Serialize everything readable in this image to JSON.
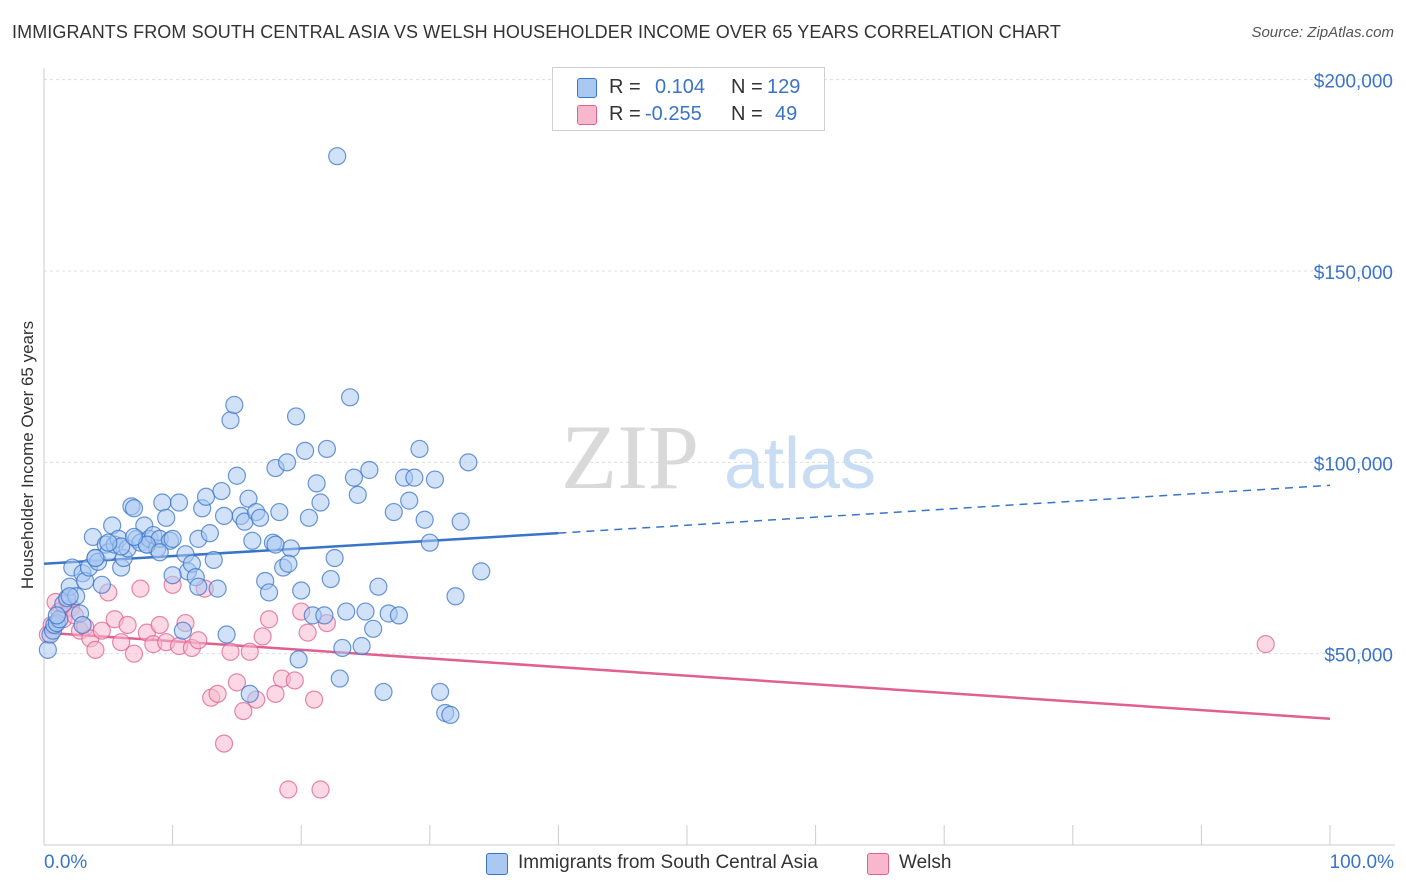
{
  "header": {
    "title": "IMMIGRANTS FROM SOUTH CENTRAL ASIA VS WELSH HOUSEHOLDER INCOME OVER 65 YEARS CORRELATION CHART",
    "source": "Source: ZipAtlas.com"
  },
  "legend": {
    "rows": [
      {
        "r_label": "R =",
        "r_value": "0.104",
        "n_label": "N =",
        "n_value": "129",
        "color": "#a9c9f2"
      },
      {
        "r_label": "R =",
        "r_value": "-0.255",
        "n_label": "N =",
        "n_value": "49",
        "color": "#f7b8cd"
      }
    ]
  },
  "bottom_legend": {
    "series1": "Immigrants from South Central Asia",
    "series2": "Welsh"
  },
  "watermark": {
    "zip": "ZIP",
    "atlas": "atlas"
  },
  "colors": {
    "blue": "#3a74c9",
    "blue_fill": "#a9c9f2",
    "pink": "#e0608f",
    "pink_fill": "#f7b8cd"
  },
  "chart_data": {
    "type": "scatter",
    "title": "IMMIGRANTS FROM SOUTH CENTRAL ASIA VS WELSH HOUSEHOLDER INCOME OVER 65 YEARS CORRELATION CHART",
    "xlabel": "",
    "ylabel": "Householder Income Over 65 years",
    "xlim": [
      0,
      100
    ],
    "ylim": [
      0,
      210000
    ],
    "x_tick_labels": [
      "0.0%",
      "100.0%"
    ],
    "y_ticks": [
      {
        "value": 50000,
        "label": "$50,000"
      },
      {
        "value": 100000,
        "label": "$100,000"
      },
      {
        "value": 150000,
        "label": "$150,000"
      },
      {
        "value": 200000,
        "label": "$200,000"
      }
    ],
    "grid": true,
    "legend_position": "top-center",
    "series": [
      {
        "name": "Immigrants from South Central Asia",
        "color": "#3a74c9",
        "fill": "#a9c9f2",
        "trend": {
          "x": [
            0,
            40,
            100
          ],
          "y": [
            73500,
            81500,
            94000
          ],
          "solid_until": 40
        },
        "points": [
          [
            0.3,
            51000
          ],
          [
            0.5,
            55000
          ],
          [
            0.7,
            56000
          ],
          [
            0.8,
            57500
          ],
          [
            1.0,
            58000
          ],
          [
            1.2,
            59000
          ],
          [
            1.5,
            63000
          ],
          [
            1.8,
            64500
          ],
          [
            2.0,
            67500
          ],
          [
            2.2,
            72500
          ],
          [
            2.5,
            65000
          ],
          [
            2.8,
            60500
          ],
          [
            3.0,
            71000
          ],
          [
            3.2,
            69000
          ],
          [
            3.5,
            72500
          ],
          [
            3.8,
            80500
          ],
          [
            4.0,
            75000
          ],
          [
            4.2,
            74000
          ],
          [
            4.5,
            68000
          ],
          [
            4.8,
            78500
          ],
          [
            5.0,
            76500
          ],
          [
            5.3,
            83500
          ],
          [
            5.5,
            78500
          ],
          [
            5.8,
            80000
          ],
          [
            6.0,
            72500
          ],
          [
            6.2,
            75000
          ],
          [
            6.5,
            77500
          ],
          [
            6.8,
            88500
          ],
          [
            7.0,
            88000
          ],
          [
            7.2,
            80000
          ],
          [
            7.5,
            79000
          ],
          [
            7.8,
            83500
          ],
          [
            8.0,
            78500
          ],
          [
            8.2,
            80000
          ],
          [
            8.5,
            81000
          ],
          [
            8.8,
            77500
          ],
          [
            9.0,
            80000
          ],
          [
            9.2,
            89500
          ],
          [
            9.5,
            85500
          ],
          [
            9.8,
            79500
          ],
          [
            10.0,
            80000
          ],
          [
            10.5,
            89500
          ],
          [
            10.8,
            56000
          ],
          [
            11.0,
            76000
          ],
          [
            11.2,
            71500
          ],
          [
            11.5,
            73500
          ],
          [
            11.8,
            70000
          ],
          [
            12.0,
            80000
          ],
          [
            12.3,
            88000
          ],
          [
            12.6,
            91000
          ],
          [
            12.9,
            81500
          ],
          [
            13.2,
            74500
          ],
          [
            13.5,
            67000
          ],
          [
            13.8,
            92500
          ],
          [
            14.0,
            86000
          ],
          [
            14.2,
            55000
          ],
          [
            14.5,
            111000
          ],
          [
            14.8,
            115000
          ],
          [
            15.0,
            96500
          ],
          [
            15.3,
            86000
          ],
          [
            15.6,
            84500
          ],
          [
            15.9,
            90500
          ],
          [
            16.2,
            79500
          ],
          [
            16.5,
            87000
          ],
          [
            16.8,
            85500
          ],
          [
            17.2,
            69000
          ],
          [
            17.5,
            66000
          ],
          [
            17.8,
            79000
          ],
          [
            18.0,
            98500
          ],
          [
            18.3,
            87000
          ],
          [
            18.6,
            72500
          ],
          [
            18.9,
            100000
          ],
          [
            19.2,
            77500
          ],
          [
            19.6,
            112000
          ],
          [
            19.8,
            48500
          ],
          [
            20.0,
            66500
          ],
          [
            20.3,
            103000
          ],
          [
            20.6,
            85500
          ],
          [
            20.9,
            60000
          ],
          [
            21.2,
            94500
          ],
          [
            21.5,
            89500
          ],
          [
            21.8,
            60000
          ],
          [
            22.0,
            103500
          ],
          [
            22.3,
            69500
          ],
          [
            22.6,
            75000
          ],
          [
            22.8,
            180000
          ],
          [
            23.0,
            43500
          ],
          [
            23.2,
            51500
          ],
          [
            23.5,
            61000
          ],
          [
            23.8,
            117000
          ],
          [
            24.1,
            96000
          ],
          [
            24.4,
            91500
          ],
          [
            24.7,
            52000
          ],
          [
            25.0,
            61000
          ],
          [
            25.3,
            98000
          ],
          [
            25.6,
            56500
          ],
          [
            26.0,
            67500
          ],
          [
            26.4,
            40000
          ],
          [
            26.8,
            60500
          ],
          [
            27.2,
            87000
          ],
          [
            27.6,
            60000
          ],
          [
            28.0,
            96000
          ],
          [
            28.4,
            90000
          ],
          [
            28.8,
            96000
          ],
          [
            29.2,
            103500
          ],
          [
            29.6,
            85000
          ],
          [
            30.0,
            79000
          ],
          [
            30.4,
            95500
          ],
          [
            30.8,
            40000
          ],
          [
            31.2,
            34500
          ],
          [
            31.6,
            34000
          ],
          [
            32.0,
            65000
          ],
          [
            32.4,
            84500
          ],
          [
            33.0,
            100000
          ],
          [
            34.0,
            71500
          ],
          [
            16.0,
            39500
          ],
          [
            18.0,
            78500
          ],
          [
            19.0,
            73500
          ],
          [
            12.0,
            67500
          ],
          [
            10.0,
            70500
          ],
          [
            8.0,
            78500
          ],
          [
            6.0,
            78000
          ],
          [
            4.0,
            75000
          ],
          [
            2.0,
            65000
          ],
          [
            1.0,
            60000
          ],
          [
            3.0,
            57500
          ],
          [
            5.0,
            79000
          ],
          [
            7.0,
            80500
          ],
          [
            9.0,
            76500
          ]
        ]
      },
      {
        "name": "Welsh",
        "color": "#e0608f",
        "fill": "#f7b8cd",
        "trend": {
          "x": [
            0,
            100
          ],
          "y": [
            55500,
            33000
          ]
        },
        "points": [
          [
            0.3,
            55000
          ],
          [
            0.6,
            57500
          ],
          [
            0.9,
            63500
          ],
          [
            1.2,
            61000
          ],
          [
            1.5,
            59000
          ],
          [
            1.8,
            64000
          ],
          [
            2.1,
            62000
          ],
          [
            2.4,
            60000
          ],
          [
            2.8,
            56000
          ],
          [
            3.2,
            57000
          ],
          [
            3.6,
            54000
          ],
          [
            4.0,
            51000
          ],
          [
            4.5,
            56000
          ],
          [
            5.0,
            66000
          ],
          [
            5.5,
            59000
          ],
          [
            6.0,
            53000
          ],
          [
            6.5,
            57500
          ],
          [
            7.0,
            50000
          ],
          [
            7.5,
            67000
          ],
          [
            8.0,
            55500
          ],
          [
            8.5,
            52500
          ],
          [
            9.0,
            57500
          ],
          [
            9.5,
            53000
          ],
          [
            10.0,
            68000
          ],
          [
            10.5,
            52000
          ],
          [
            11.0,
            58000
          ],
          [
            11.5,
            51500
          ],
          [
            12.0,
            53500
          ],
          [
            12.5,
            67000
          ],
          [
            13.0,
            38500
          ],
          [
            13.5,
            39500
          ],
          [
            14.0,
            26500
          ],
          [
            14.5,
            50500
          ],
          [
            15.0,
            42500
          ],
          [
            15.5,
            35000
          ],
          [
            16.0,
            50500
          ],
          [
            16.5,
            38000
          ],
          [
            17.0,
            54500
          ],
          [
            17.5,
            59000
          ],
          [
            18.0,
            39500
          ],
          [
            18.5,
            43500
          ],
          [
            19.0,
            14500
          ],
          [
            19.5,
            43000
          ],
          [
            20.0,
            61000
          ],
          [
            20.5,
            55500
          ],
          [
            21.0,
            38000
          ],
          [
            21.5,
            14500
          ],
          [
            22.0,
            58000
          ],
          [
            95.0,
            52500
          ]
        ]
      }
    ]
  }
}
